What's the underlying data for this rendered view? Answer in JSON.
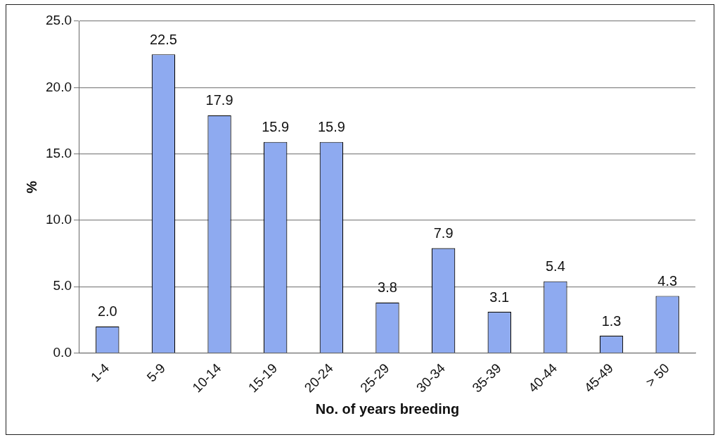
{
  "chart_data": {
    "type": "bar",
    "ylabel": "%",
    "xlabel": "No. of years breeding",
    "categories": [
      "1-4",
      "5-9",
      "10-14",
      "15-19",
      "20-24",
      "25-29",
      "30-34",
      "35-39",
      "40-44",
      "45-49",
      "> 50"
    ],
    "values": [
      2.0,
      22.5,
      17.9,
      15.9,
      15.9,
      3.8,
      7.9,
      3.1,
      5.4,
      1.3,
      4.3
    ],
    "value_labels": [
      "2.0",
      "22.5",
      "17.9",
      "15.9",
      "15.9",
      "3.8",
      "7.9",
      "3.1",
      "5.4",
      "1.3",
      "4.3"
    ],
    "color": "#8eaaf0",
    "ylim": [
      0,
      25
    ],
    "yticks": [
      {
        "value": 0,
        "label": "0.0"
      },
      {
        "value": 5,
        "label": "5.0"
      },
      {
        "value": 10,
        "label": "10.0"
      },
      {
        "value": 15,
        "label": "15.0"
      },
      {
        "value": 20,
        "label": "20.0"
      },
      {
        "value": 25,
        "label": "25.0"
      }
    ],
    "grid": "y",
    "legend": false
  }
}
